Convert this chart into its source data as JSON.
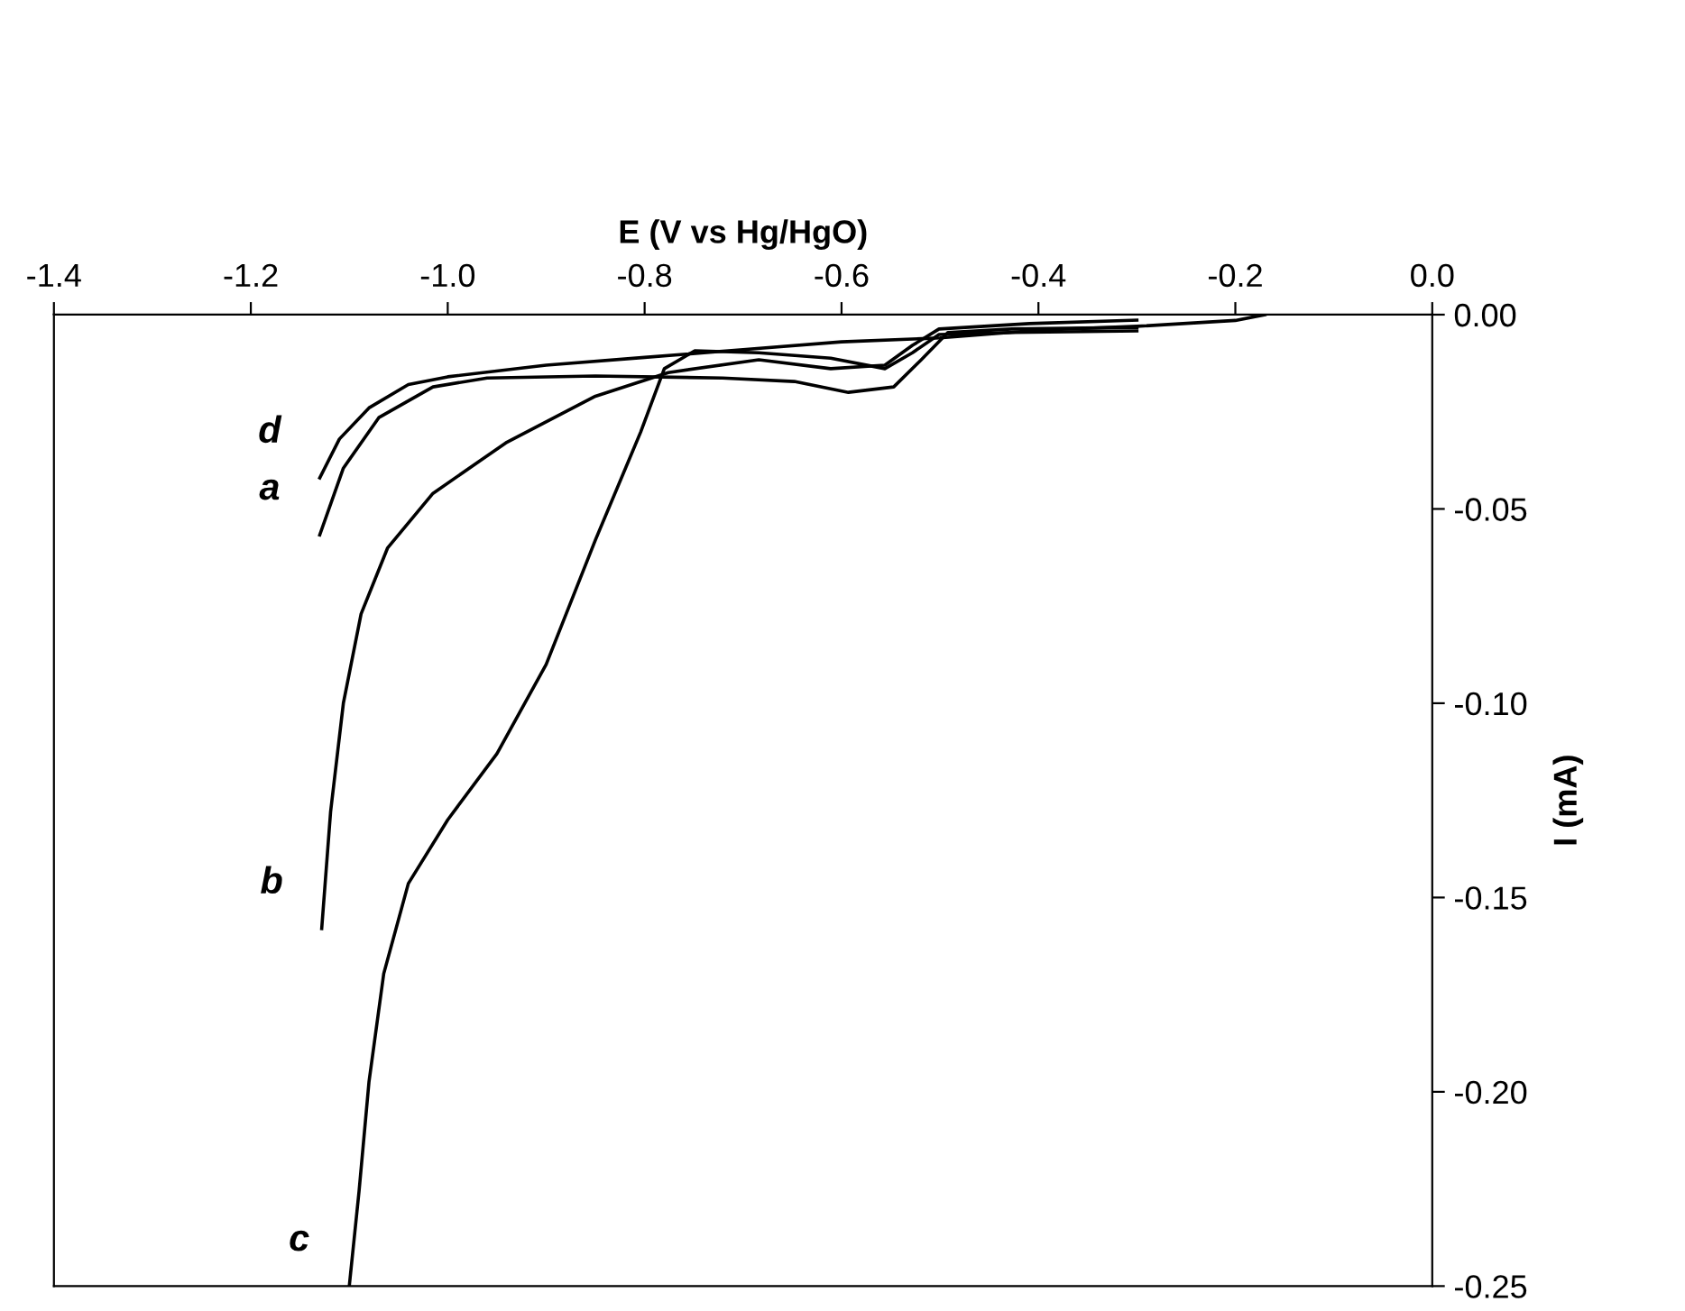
{
  "chart_data": {
    "type": "line",
    "xlabel": "E (V vs Hg/HgO)",
    "ylabel": "I (mA)",
    "xlim": [
      -1.4,
      0.0
    ],
    "xticks": [
      {
        "value": -1.4,
        "label": "-1.4"
      },
      {
        "value": -1.2,
        "label": "-1.2"
      },
      {
        "value": -1.0,
        "label": "-1.0"
      },
      {
        "value": -0.8,
        "label": "-0.8"
      },
      {
        "value": -0.6,
        "label": "-0.6"
      },
      {
        "value": -0.4,
        "label": "-0.4"
      },
      {
        "value": -0.2,
        "label": "-0.2"
      },
      {
        "value": 0.0,
        "label": "0.0"
      }
    ],
    "ylim": [
      -0.25,
      0.0
    ],
    "yticks": [
      {
        "value": 0.0,
        "label": "0.00"
      },
      {
        "value": -0.05,
        "label": "-0.05"
      },
      {
        "value": -0.1,
        "label": "-0.10"
      },
      {
        "value": -0.15,
        "label": "-0.15"
      },
      {
        "value": -0.2,
        "label": "-0.20"
      },
      {
        "value": -0.25,
        "label": "-0.25"
      }
    ],
    "grid": false,
    "legend": false,
    "marker": "none",
    "line_style": "solid",
    "series": [
      {
        "name": "a",
        "color": "#000000",
        "x": [
          -1.13,
          -1.106,
          -1.07,
          -1.015,
          -0.96,
          -0.85,
          -0.721,
          -0.648,
          -0.593,
          -0.547,
          -0.519,
          -0.492,
          -0.427,
          -0.3
        ],
        "values": [
          -0.0567,
          -0.0395,
          -0.0265,
          -0.0186,
          -0.0163,
          -0.0158,
          -0.0163,
          -0.0172,
          -0.02,
          -0.0186,
          -0.0116,
          -0.0046,
          -0.0037,
          -0.0033
        ]
      },
      {
        "name": "b",
        "color": "#000000",
        "x": [
          -1.128,
          -1.119,
          -1.106,
          -1.088,
          -1.061,
          -1.015,
          -0.941,
          -0.85,
          -0.776,
          -0.684,
          -0.611,
          -0.556,
          -0.528,
          -0.501,
          -0.409,
          -0.3
        ],
        "values": [
          -0.158,
          -0.128,
          -0.1,
          -0.077,
          -0.06,
          -0.046,
          -0.033,
          -0.021,
          -0.0149,
          -0.0116,
          -0.0139,
          -0.013,
          -0.0079,
          -0.0037,
          -0.0023,
          -0.0014
        ]
      },
      {
        "name": "c",
        "color": "#000000",
        "x": [
          -1.1,
          -1.09,
          -1.08,
          -1.065,
          -1.04,
          -1.0,
          -0.95,
          -0.9,
          -0.85,
          -0.804,
          -0.78,
          -0.749,
          -0.684,
          -0.611,
          -0.556,
          -0.528,
          -0.501,
          -0.427,
          -0.3
        ],
        "values": [
          -0.25,
          -0.2254,
          -0.1975,
          -0.1696,
          -0.1464,
          -0.13,
          -0.113,
          -0.09,
          -0.058,
          -0.0302,
          -0.0139,
          -0.0093,
          -0.0098,
          -0.0112,
          -0.0139,
          -0.0098,
          -0.0051,
          -0.0046,
          -0.0042
        ]
      },
      {
        "name": "d",
        "color": "#000000",
        "x": [
          -1.13,
          -1.11,
          -1.08,
          -1.04,
          -1.0,
          -0.9,
          -0.8,
          -0.7,
          -0.6,
          -0.5,
          -0.4,
          -0.3,
          -0.2,
          -0.17
        ],
        "values": [
          -0.042,
          -0.032,
          -0.024,
          -0.018,
          -0.016,
          -0.013,
          -0.011,
          -0.009,
          -0.007,
          -0.006,
          -0.004,
          -0.003,
          -0.0015,
          0.0
        ]
      }
    ]
  }
}
